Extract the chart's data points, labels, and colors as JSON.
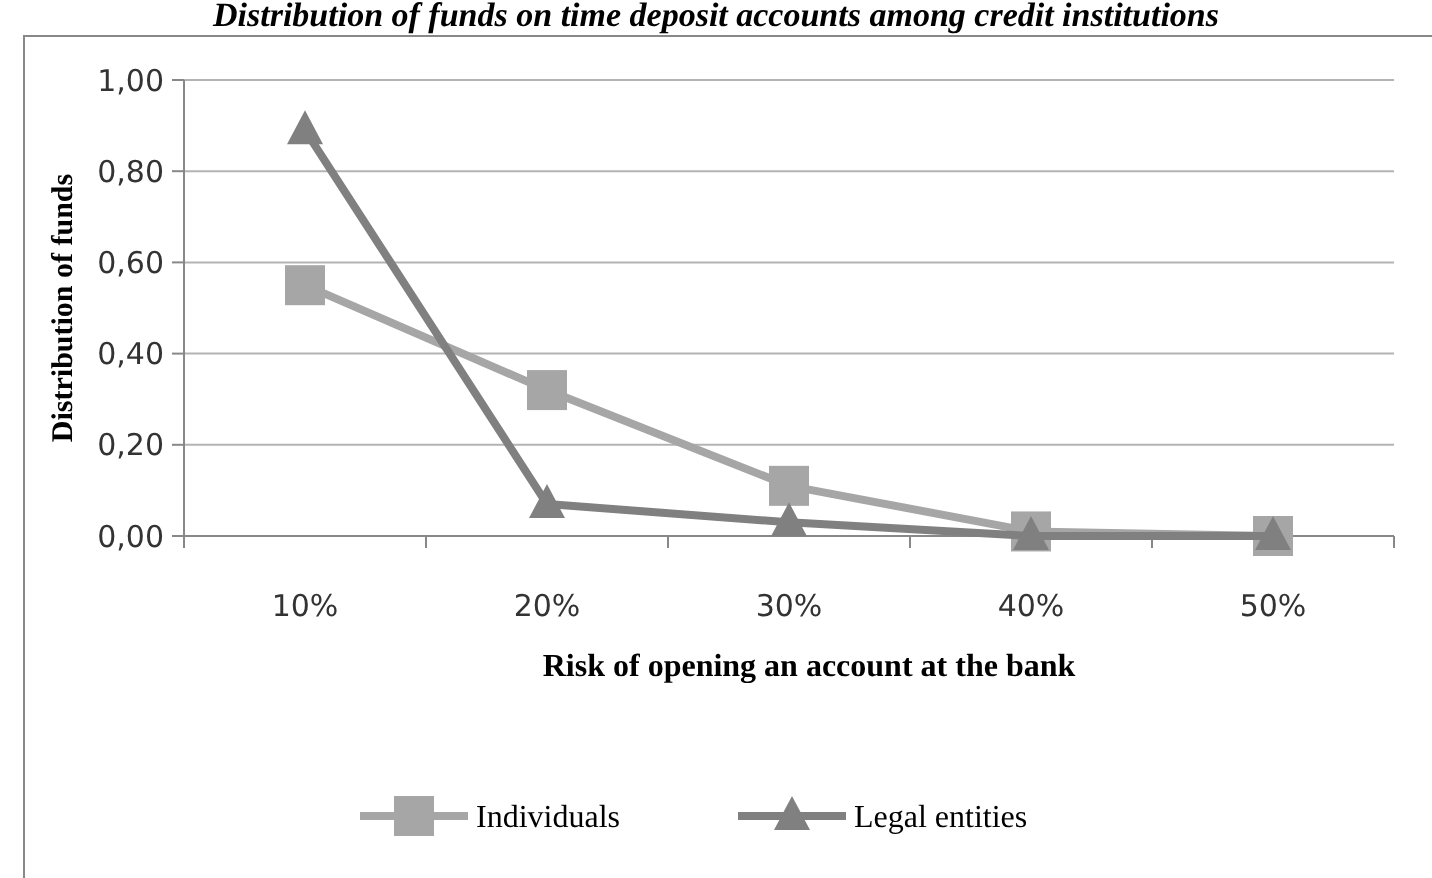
{
  "chart_data": {
    "type": "line",
    "title": "Distribution of funds on time deposit accounts among credit institutions",
    "xlabel": "Risk of opening an account at the bank",
    "ylabel": "Distribution of funds",
    "categories": [
      "10%",
      "20%",
      "30%",
      "40%",
      "50%"
    ],
    "series": [
      {
        "name": "Individuals",
        "color": "#a6a6a6",
        "marker": "square",
        "values": [
          0.55,
          0.32,
          0.11,
          0.01,
          0.0
        ]
      },
      {
        "name": "Legal entities",
        "color": "#808080",
        "marker": "triangle",
        "values": [
          0.89,
          0.07,
          0.03,
          0.0,
          0.0
        ]
      }
    ],
    "ylim": [
      0,
      1
    ],
    "yticks": [
      {
        "value": 0,
        "label": "0,00"
      },
      {
        "value": 0.2,
        "label": "0,20"
      },
      {
        "value": 0.4,
        "label": "0,40"
      },
      {
        "value": 0.6,
        "label": "0,60"
      },
      {
        "value": 0.8,
        "label": "0,80"
      },
      {
        "value": 1,
        "label": "1,00"
      }
    ],
    "grid": "y",
    "legend": "bottom"
  }
}
